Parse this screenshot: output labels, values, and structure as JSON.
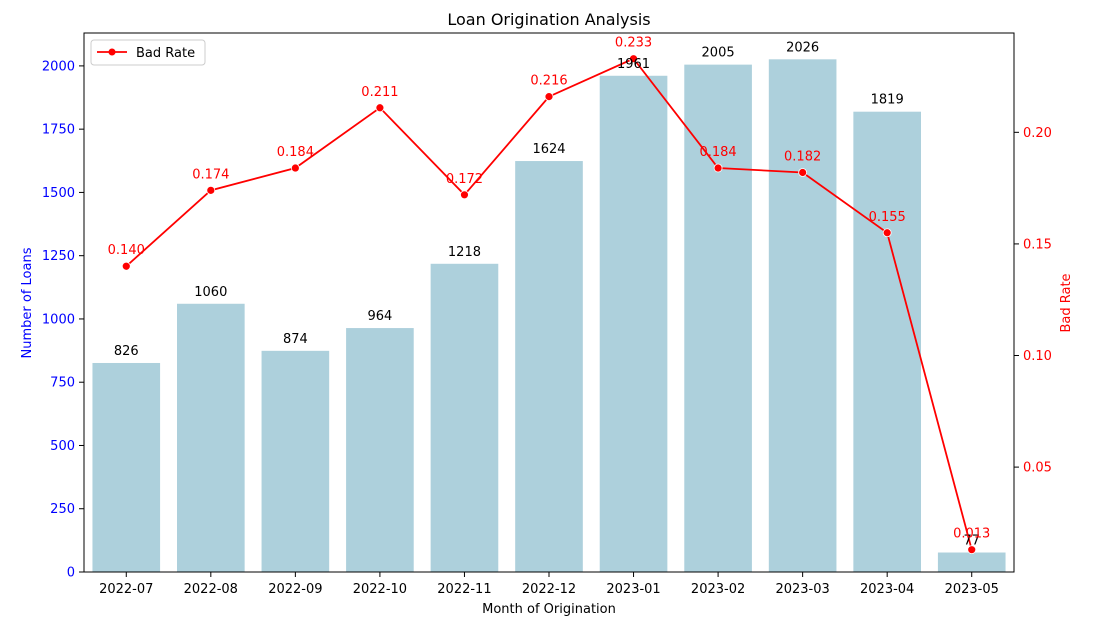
{
  "chart_data": {
    "type": "bar",
    "title": "Loan Origination Analysis",
    "xlabel": "Month of Origination",
    "ylabel": "Number of Loans",
    "y2label": "Bad Rate",
    "categories": [
      "2022-07",
      "2022-08",
      "2022-09",
      "2022-10",
      "2022-11",
      "2022-12",
      "2023-01",
      "2023-02",
      "2023-03",
      "2023-04",
      "2023-05"
    ],
    "ylim": [
      0,
      2130
    ],
    "y2lim": [
      0.003,
      0.2445
    ],
    "yticks": [
      0,
      250,
      500,
      750,
      1000,
      1250,
      1500,
      1750,
      2000
    ],
    "y2ticks": [
      0.05,
      0.1,
      0.15,
      0.2
    ],
    "y2tick_labels": [
      "0.05",
      "0.10",
      "0.15",
      "0.20"
    ],
    "grid": false,
    "legend_position": "top-left",
    "series": [
      {
        "type": "bar",
        "axis": "left",
        "values": [
          826,
          1060,
          874,
          964,
          1218,
          1624,
          1961,
          2005,
          2026,
          1819,
          77
        ],
        "labels": [
          "826",
          "1060",
          "874",
          "964",
          "1218",
          "1624",
          "1961",
          "2005",
          "2026",
          "1819",
          "77"
        ],
        "color": "#add0dc"
      },
      {
        "name": "Bad Rate",
        "type": "line",
        "axis": "right",
        "values": [
          0.14,
          0.174,
          0.184,
          0.211,
          0.172,
          0.216,
          0.233,
          0.184,
          0.182,
          0.155,
          0.013
        ],
        "labels": [
          "0.140",
          "0.174",
          "0.184",
          "0.211",
          "0.172",
          "0.216",
          "0.233",
          "0.184",
          "0.182",
          "0.155",
          "0.013"
        ],
        "color": "#ff0000"
      }
    ],
    "colors": {
      "left_axis": "#0000ff",
      "right_axis": "#ff0000",
      "bars": "#add0dc",
      "line": "#ff0000"
    }
  }
}
